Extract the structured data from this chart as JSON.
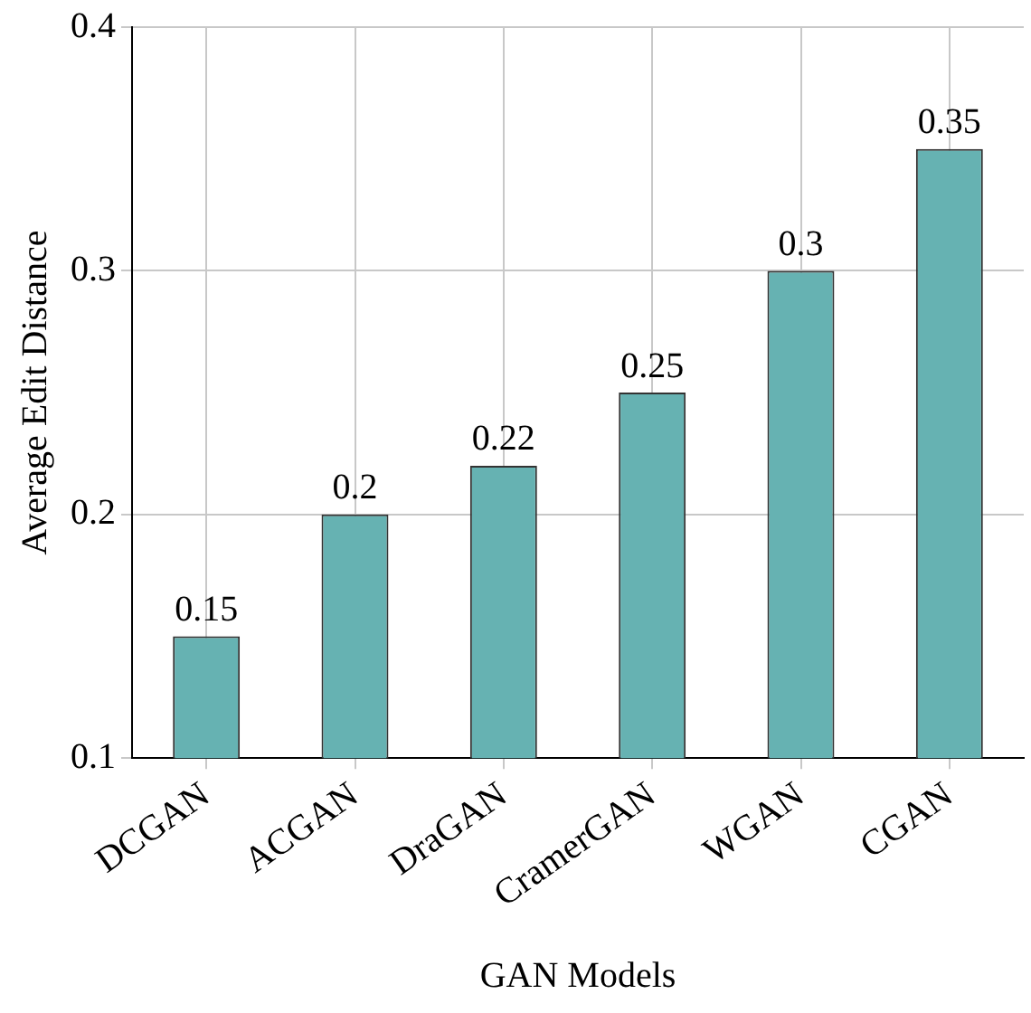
{
  "chart_data": {
    "type": "bar",
    "xlabel": "GAN Models",
    "ylabel": "Average Edit Distance",
    "categories": [
      "DCGAN",
      "ACGAN",
      "DraGAN",
      "CramerGAN",
      "WGAN",
      "CGAN"
    ],
    "values": [
      0.15,
      0.2,
      0.22,
      0.25,
      0.3,
      0.35
    ],
    "color": "#66b2b2",
    "ylim": [
      0.1,
      0.4
    ],
    "yticks": [
      0.1,
      0.2,
      0.3,
      0.4
    ],
    "grid": true,
    "data_labels": true
  }
}
